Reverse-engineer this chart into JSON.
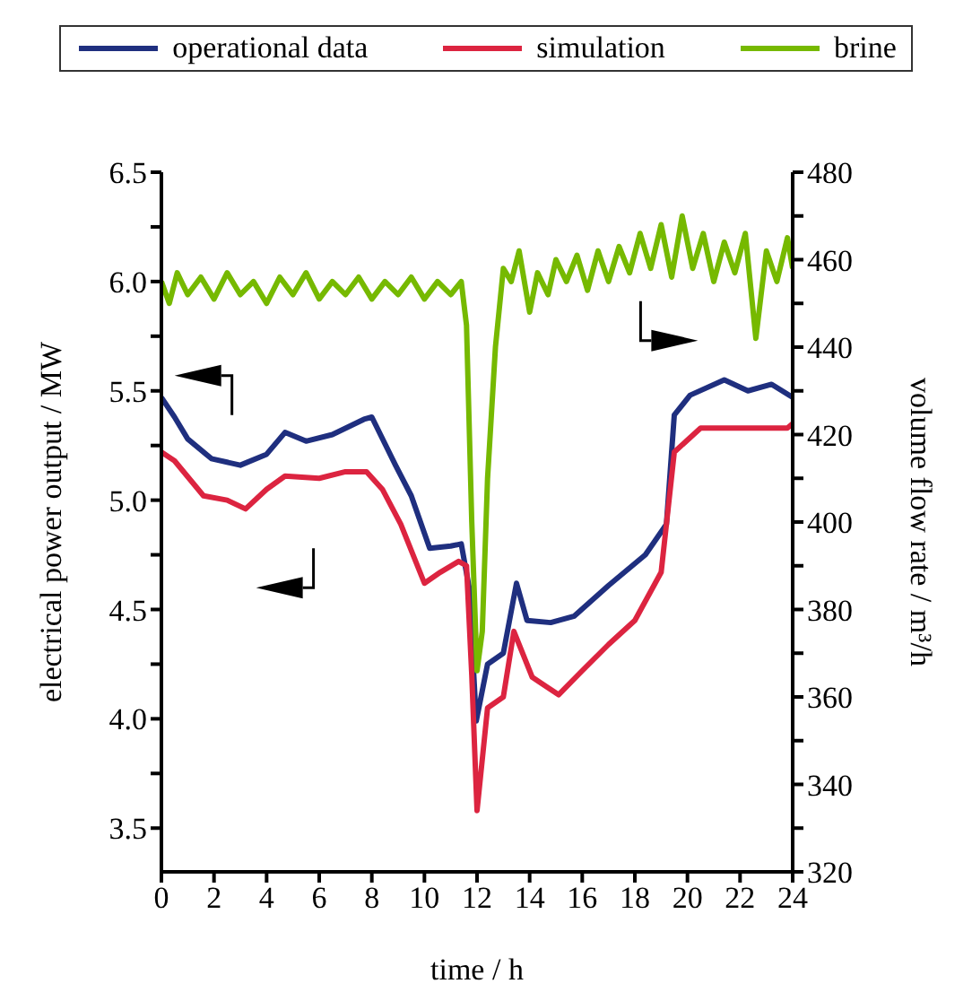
{
  "chart_data": {
    "type": "line",
    "xlabel": "time  /  h",
    "ylabel": "electrical power output  /  MW",
    "y2label": "volume flow rate  /  m³/h",
    "legend": "top",
    "xlim": [
      0,
      24
    ],
    "xticks": [
      0,
      2,
      4,
      6,
      8,
      10,
      12,
      14,
      16,
      18,
      20,
      22,
      24
    ],
    "ylim": [
      3.3,
      6.5
    ],
    "yticks": [
      3.5,
      {
        "value": 3.75,
        "label": null
      },
      {
        "value": 4,
        "label": "4.0"
      },
      {
        "value": 4.25,
        "label": null
      },
      4.5,
      {
        "value": 4.75,
        "label": null
      },
      {
        "value": 5,
        "label": "5.0"
      },
      {
        "value": 5.25,
        "label": null
      },
      5.5,
      {
        "value": 5.75,
        "label": null
      },
      {
        "value": 6,
        "label": "6.0"
      },
      {
        "value": 6.25,
        "label": null
      },
      6.5
    ],
    "y2lim": [
      320,
      480
    ],
    "y2ticks": [
      320,
      {
        "value": 330,
        "label": null
      },
      340,
      {
        "value": 350,
        "label": null
      },
      360,
      {
        "value": 370,
        "label": null
      },
      380,
      {
        "value": 390,
        "label": null
      },
      400,
      {
        "value": 410,
        "label": null
      },
      420,
      {
        "value": 430,
        "label": null
      },
      440,
      {
        "value": 450,
        "label": null
      },
      460,
      {
        "value": 470,
        "label": null
      },
      480
    ],
    "series": [
      {
        "name": "operational data",
        "color": "#1f2f7f",
        "x": [
          0,
          0.5,
          1,
          1.9,
          3,
          4,
          4.7,
          5.5,
          6.5,
          7.7,
          8,
          8.9,
          9.5,
          10.2,
          11,
          11.4,
          11.7,
          11.97,
          12.4,
          13,
          13.5,
          13.9,
          14.8,
          15.7,
          17,
          18.4,
          19.2,
          19.5,
          20.1,
          21.4,
          22.3,
          23.2,
          24
        ],
        "values": [
          5.47,
          5.38,
          5.28,
          5.19,
          5.16,
          5.21,
          5.31,
          5.27,
          5.3,
          5.37,
          5.38,
          5.16,
          5.02,
          4.78,
          4.79,
          4.8,
          4.6,
          3.99,
          4.25,
          4.3,
          4.62,
          4.45,
          4.44,
          4.47,
          4.61,
          4.75,
          4.89,
          5.39,
          5.48,
          5.55,
          5.5,
          5.53,
          5.47
        ]
      },
      {
        "name": "simulation",
        "color": "#dc2440",
        "x": [
          0,
          0.5,
          1.6,
          2.5,
          3.2,
          4,
          4.7,
          6,
          7,
          7.8,
          8.4,
          9.1,
          10,
          10.6,
          11.3,
          11.6,
          11.8,
          12,
          12.4,
          13,
          13.4,
          14.1,
          15.1,
          16,
          17,
          18,
          19,
          19.5,
          20.5,
          22,
          23.8,
          24
        ],
        "values": [
          5.22,
          5.18,
          5.02,
          5.0,
          4.96,
          5.05,
          5.11,
          5.1,
          5.13,
          5.13,
          5.05,
          4.89,
          4.62,
          4.67,
          4.72,
          4.7,
          4.2,
          3.58,
          4.05,
          4.1,
          4.4,
          4.19,
          4.11,
          4.22,
          4.34,
          4.45,
          4.67,
          5.22,
          5.33,
          5.33,
          5.33,
          5.35
        ]
      },
      {
        "name": "brine",
        "color": "#76b900",
        "axis": "y2",
        "x": [
          0,
          0.3,
          0.6,
          1,
          1.5,
          2,
          2.5,
          3,
          3.5,
          4,
          4.5,
          5,
          5.5,
          6,
          6.5,
          7,
          7.5,
          8,
          8.5,
          9,
          9.5,
          10,
          10.5,
          11,
          11.4,
          11.6,
          11.8,
          12.0,
          12.2,
          12.4,
          12.7,
          13.0,
          13.3,
          13.6,
          14.0,
          14.3,
          14.7,
          15,
          15.4,
          15.8,
          16.2,
          16.6,
          17,
          17.4,
          17.8,
          18.2,
          18.6,
          19,
          19.4,
          19.8,
          20.2,
          20.6,
          21,
          21.4,
          21.8,
          22.2,
          22.6,
          23,
          23.4,
          23.8,
          24
        ],
        "values": [
          455,
          450,
          457,
          452,
          456,
          451,
          457,
          452,
          455,
          450,
          456,
          452,
          457,
          451,
          455,
          452,
          456,
          451,
          455,
          452,
          456,
          451,
          455,
          452,
          455,
          445,
          400,
          366,
          375,
          410,
          440,
          458,
          455,
          462,
          448,
          457,
          452,
          460,
          455,
          461,
          453,
          462,
          455,
          463,
          457,
          466,
          458,
          468,
          456,
          470,
          458,
          466,
          455,
          464,
          457,
          466,
          442,
          462,
          455,
          465,
          458
        ]
      }
    ]
  }
}
